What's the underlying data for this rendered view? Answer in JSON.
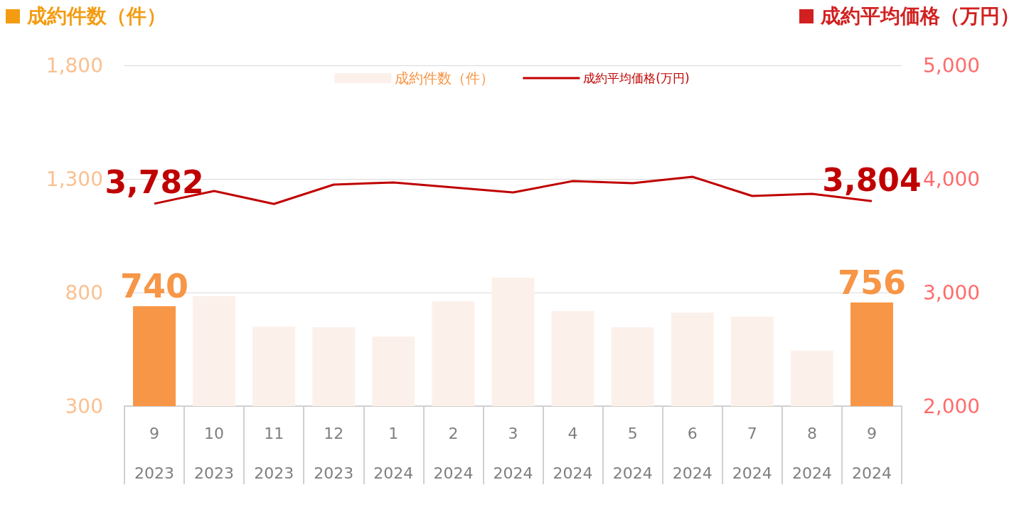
{
  "chart_data": {
    "type": "bar",
    "ylabel": "成約件数（件）",
    "y2label": "成約平均価格（万円）",
    "categories": [
      "9\n2023",
      "10\n2023",
      "11\n2023",
      "12\n2023",
      "1\n2024",
      "2\n2024",
      "3\n2024",
      "4\n2024",
      "5\n2024",
      "6\n2024",
      "7\n2024",
      "8\n2024",
      "9\n2024"
    ],
    "series": [
      {
        "name": "成約件数（件）",
        "color": "#fcf1ea",
        "colors": [
          "#f79646",
          "#fcf1ea",
          "#fcf1ea",
          "#fcf1ea",
          "#fcf1ea",
          "#fcf1ea",
          "#fcf1ea",
          "#fcf1ea",
          "#fcf1ea",
          "#fcf1ea",
          "#fcf1ea",
          "#fcf1ea",
          "#f79646"
        ],
        "values": [
          740,
          784,
          650,
          647,
          606,
          762,
          866,
          719,
          647,
          712,
          694,
          544,
          756
        ],
        "value_labels": [
          "740",
          null,
          null,
          null,
          null,
          null,
          null,
          null,
          null,
          null,
          null,
          null,
          "756"
        ]
      },
      {
        "name": "成約平均価格(万円)",
        "type": "line",
        "axis": "y2",
        "color": "#c00000",
        "values": [
          3782,
          3894,
          3780,
          3950,
          3969,
          3925,
          3881,
          3981,
          3963,
          4019,
          3850,
          3869,
          3804
        ],
        "value_labels": [
          "3,782",
          null,
          null,
          null,
          null,
          null,
          null,
          null,
          null,
          null,
          null,
          null,
          "3,804"
        ]
      }
    ],
    "ylim": [
      300,
      1800
    ],
    "yticks": [
      300,
      {
        "value": 800,
        "label": "800"
      },
      {
        "value": 1300,
        "label": "1,300"
      },
      {
        "value": 1800,
        "label": "1,800"
      }
    ],
    "y2lim": [
      2000,
      5000
    ],
    "y2ticks": [
      {
        "value": 2000,
        "label": "2,000"
      },
      {
        "value": 3000,
        "label": "3,000"
      },
      {
        "value": 4000,
        "label": "4,000"
      },
      {
        "value": 5000,
        "label": "5,000"
      }
    ],
    "grid": "y",
    "legend": "top",
    "marker": "none",
    "line_style": "solid"
  }
}
